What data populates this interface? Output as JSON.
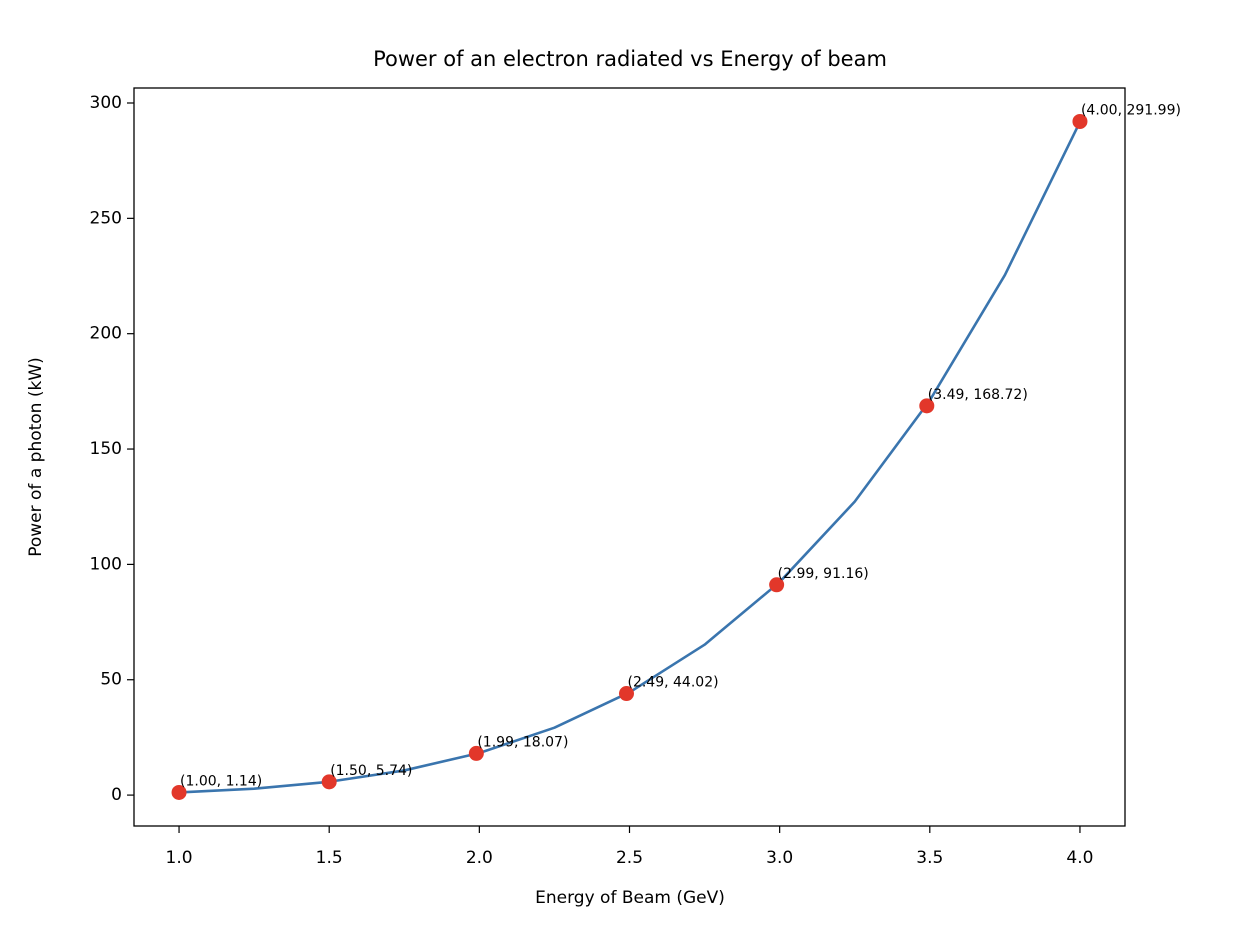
{
  "chart_data": {
    "type": "scatter",
    "title": "Power of an electron radiated vs Energy of beam",
    "x_label": "Energy of Beam (GeV)",
    "y_label": "Power of a photon (kW)",
    "xlim": [
      0.85,
      4.15
    ],
    "ylim": [
      -13.4,
      306.5
    ],
    "xticks": [
      {
        "value": 1,
        "label": "1.0"
      },
      {
        "value": 1.5,
        "label": "1.5"
      },
      {
        "value": 2,
        "label": "2.0"
      },
      {
        "value": 2.5,
        "label": "2.5"
      },
      {
        "value": 3,
        "label": "3.0"
      },
      {
        "value": 3.5,
        "label": "3.5"
      },
      {
        "value": 4,
        "label": "4.0"
      }
    ],
    "yticks": [
      0,
      50,
      100,
      150,
      200,
      250,
      300
    ],
    "grid": false,
    "series": [
      {
        "type": "line",
        "color": "#3a75ae",
        "x": [
          1.0,
          1.25,
          1.5,
          1.75,
          2.0,
          2.25,
          2.5,
          2.75,
          3.0,
          3.25,
          3.5,
          3.75,
          4.0
        ],
        "values": [
          1.14,
          2.78,
          5.77,
          10.69,
          18.24,
          29.22,
          44.53,
          65.19,
          92.34,
          127.2,
          171.1,
          225.4,
          291.8
        ]
      },
      {
        "type": "scatter",
        "color": "#e2372a",
        "x": [
          1.0,
          1.5,
          1.99,
          2.49,
          2.99,
          3.49,
          4.0
        ],
        "values": [
          1.14,
          5.74,
          18.07,
          44.02,
          91.16,
          168.72,
          291.99
        ],
        "value_labels": [
          "(1.00, 1.14)",
          "(1.50, 5.74)",
          "(1.99, 18.07)",
          "(2.49, 44.02)",
          "(2.99, 91.16)",
          "(3.49, 168.72)",
          "(4.00, 291.99)"
        ]
      }
    ]
  }
}
